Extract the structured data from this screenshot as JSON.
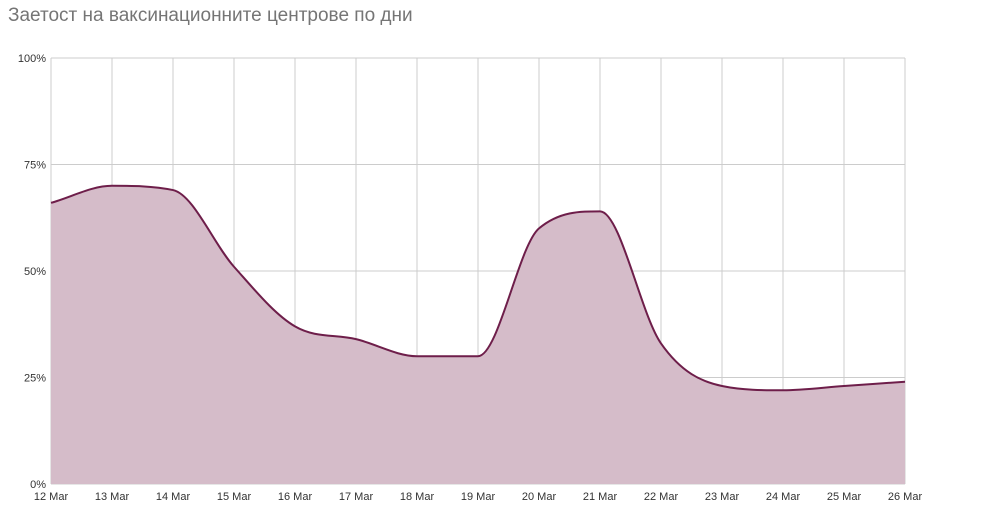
{
  "chart_data": {
    "type": "area",
    "title": "Заетост на ваксинационните центрове по дни",
    "xlabel": "",
    "ylabel": "",
    "x": [
      "12 Mar",
      "13 Mar",
      "14 Mar",
      "15 Mar",
      "16 Mar",
      "17 Mar",
      "18 Mar",
      "19 Mar",
      "20 Mar",
      "21 Mar",
      "22 Mar",
      "23 Mar",
      "24 Mar",
      "25 Mar",
      "26 Mar"
    ],
    "series": [
      {
        "values": [
          66,
          70,
          69,
          51,
          37,
          34,
          30,
          30,
          60,
          64,
          33,
          23,
          22,
          23,
          24
        ]
      }
    ],
    "ylim": [
      0,
      100
    ],
    "y_ticks": [
      "0%",
      "25%",
      "50%",
      "75%",
      "100%"
    ],
    "y_tick_values": [
      0,
      25,
      50,
      75,
      100
    ],
    "grid": true,
    "colors": {
      "line": "#6e1e4a",
      "fill": "#d5bcc9",
      "grid": "#cccccc"
    }
  }
}
